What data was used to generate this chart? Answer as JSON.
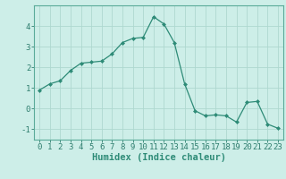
{
  "x": [
    0,
    1,
    2,
    3,
    4,
    5,
    6,
    7,
    8,
    9,
    10,
    11,
    12,
    13,
    14,
    15,
    16,
    17,
    18,
    19,
    20,
    21,
    22,
    23
  ],
  "y": [
    0.9,
    1.2,
    1.35,
    1.85,
    2.2,
    2.25,
    2.3,
    2.65,
    3.2,
    3.4,
    3.45,
    4.45,
    4.1,
    3.2,
    1.2,
    -0.1,
    -0.35,
    -0.3,
    -0.35,
    -0.65,
    0.3,
    0.35,
    -0.75,
    -0.95
  ],
  "line_color": "#2e8b77",
  "marker": "D",
  "marker_size": 2.0,
  "bg_color": "#cdeee8",
  "grid_color": "#aed8d0",
  "xlabel": "Humidex (Indice chaleur)",
  "xlim": [
    -0.5,
    23.5
  ],
  "ylim": [
    -1.5,
    5.0
  ],
  "yticks": [
    -1,
    0,
    1,
    2,
    3,
    4
  ],
  "xticks": [
    0,
    1,
    2,
    3,
    4,
    5,
    6,
    7,
    8,
    9,
    10,
    11,
    12,
    13,
    14,
    15,
    16,
    17,
    18,
    19,
    20,
    21,
    22,
    23
  ],
  "tick_font_size": 6.5,
  "xlabel_font_size": 7.5
}
